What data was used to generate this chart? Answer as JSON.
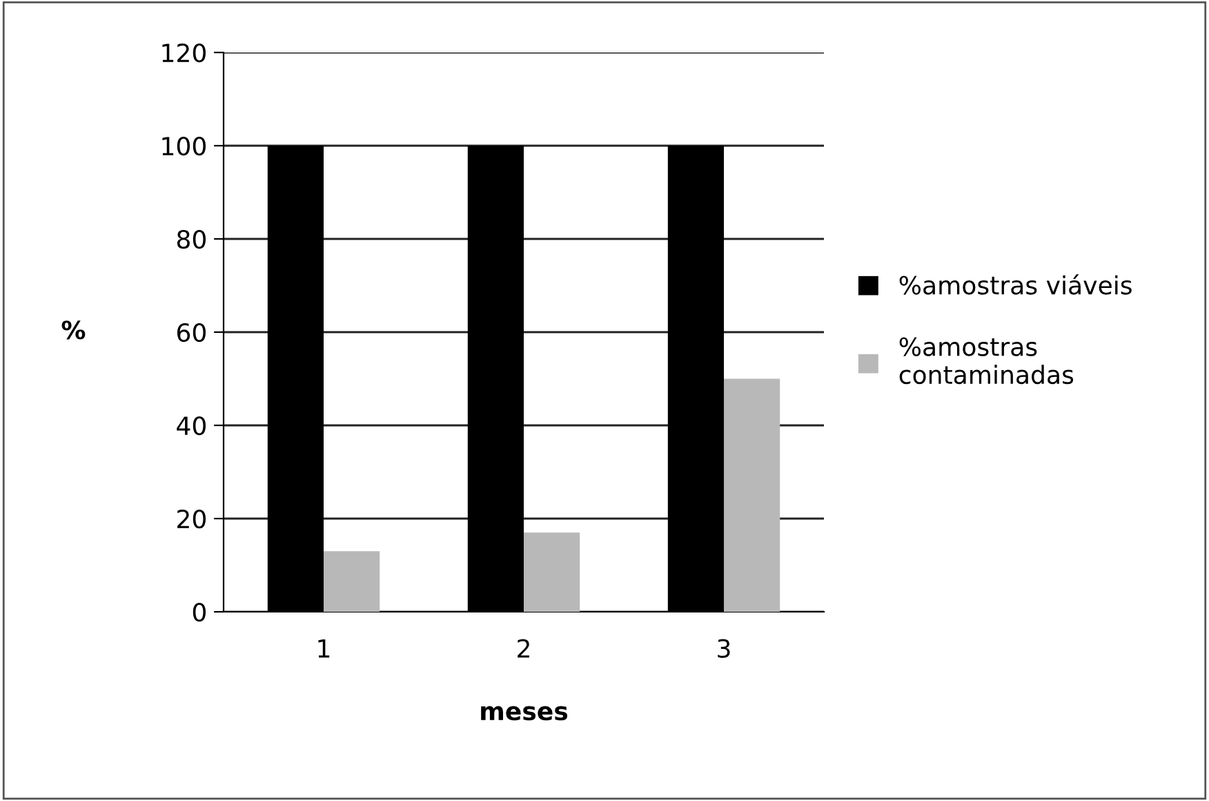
{
  "chart_data": {
    "type": "bar",
    "categories": [
      "1",
      "2",
      "3"
    ],
    "series": [
      {
        "name": "%amostras viáveis",
        "color": "#000000",
        "values": [
          100,
          100,
          100
        ]
      },
      {
        "name": "%amostras contaminadas",
        "color": "#b8b8b8",
        "values": [
          13,
          17,
          50
        ]
      }
    ],
    "xlabel": "meses",
    "ylabel": "%",
    "ylim": [
      0,
      120
    ],
    "yticks": [
      0,
      20,
      40,
      60,
      80,
      100,
      120
    ],
    "grid": "y",
    "legend": "right"
  }
}
